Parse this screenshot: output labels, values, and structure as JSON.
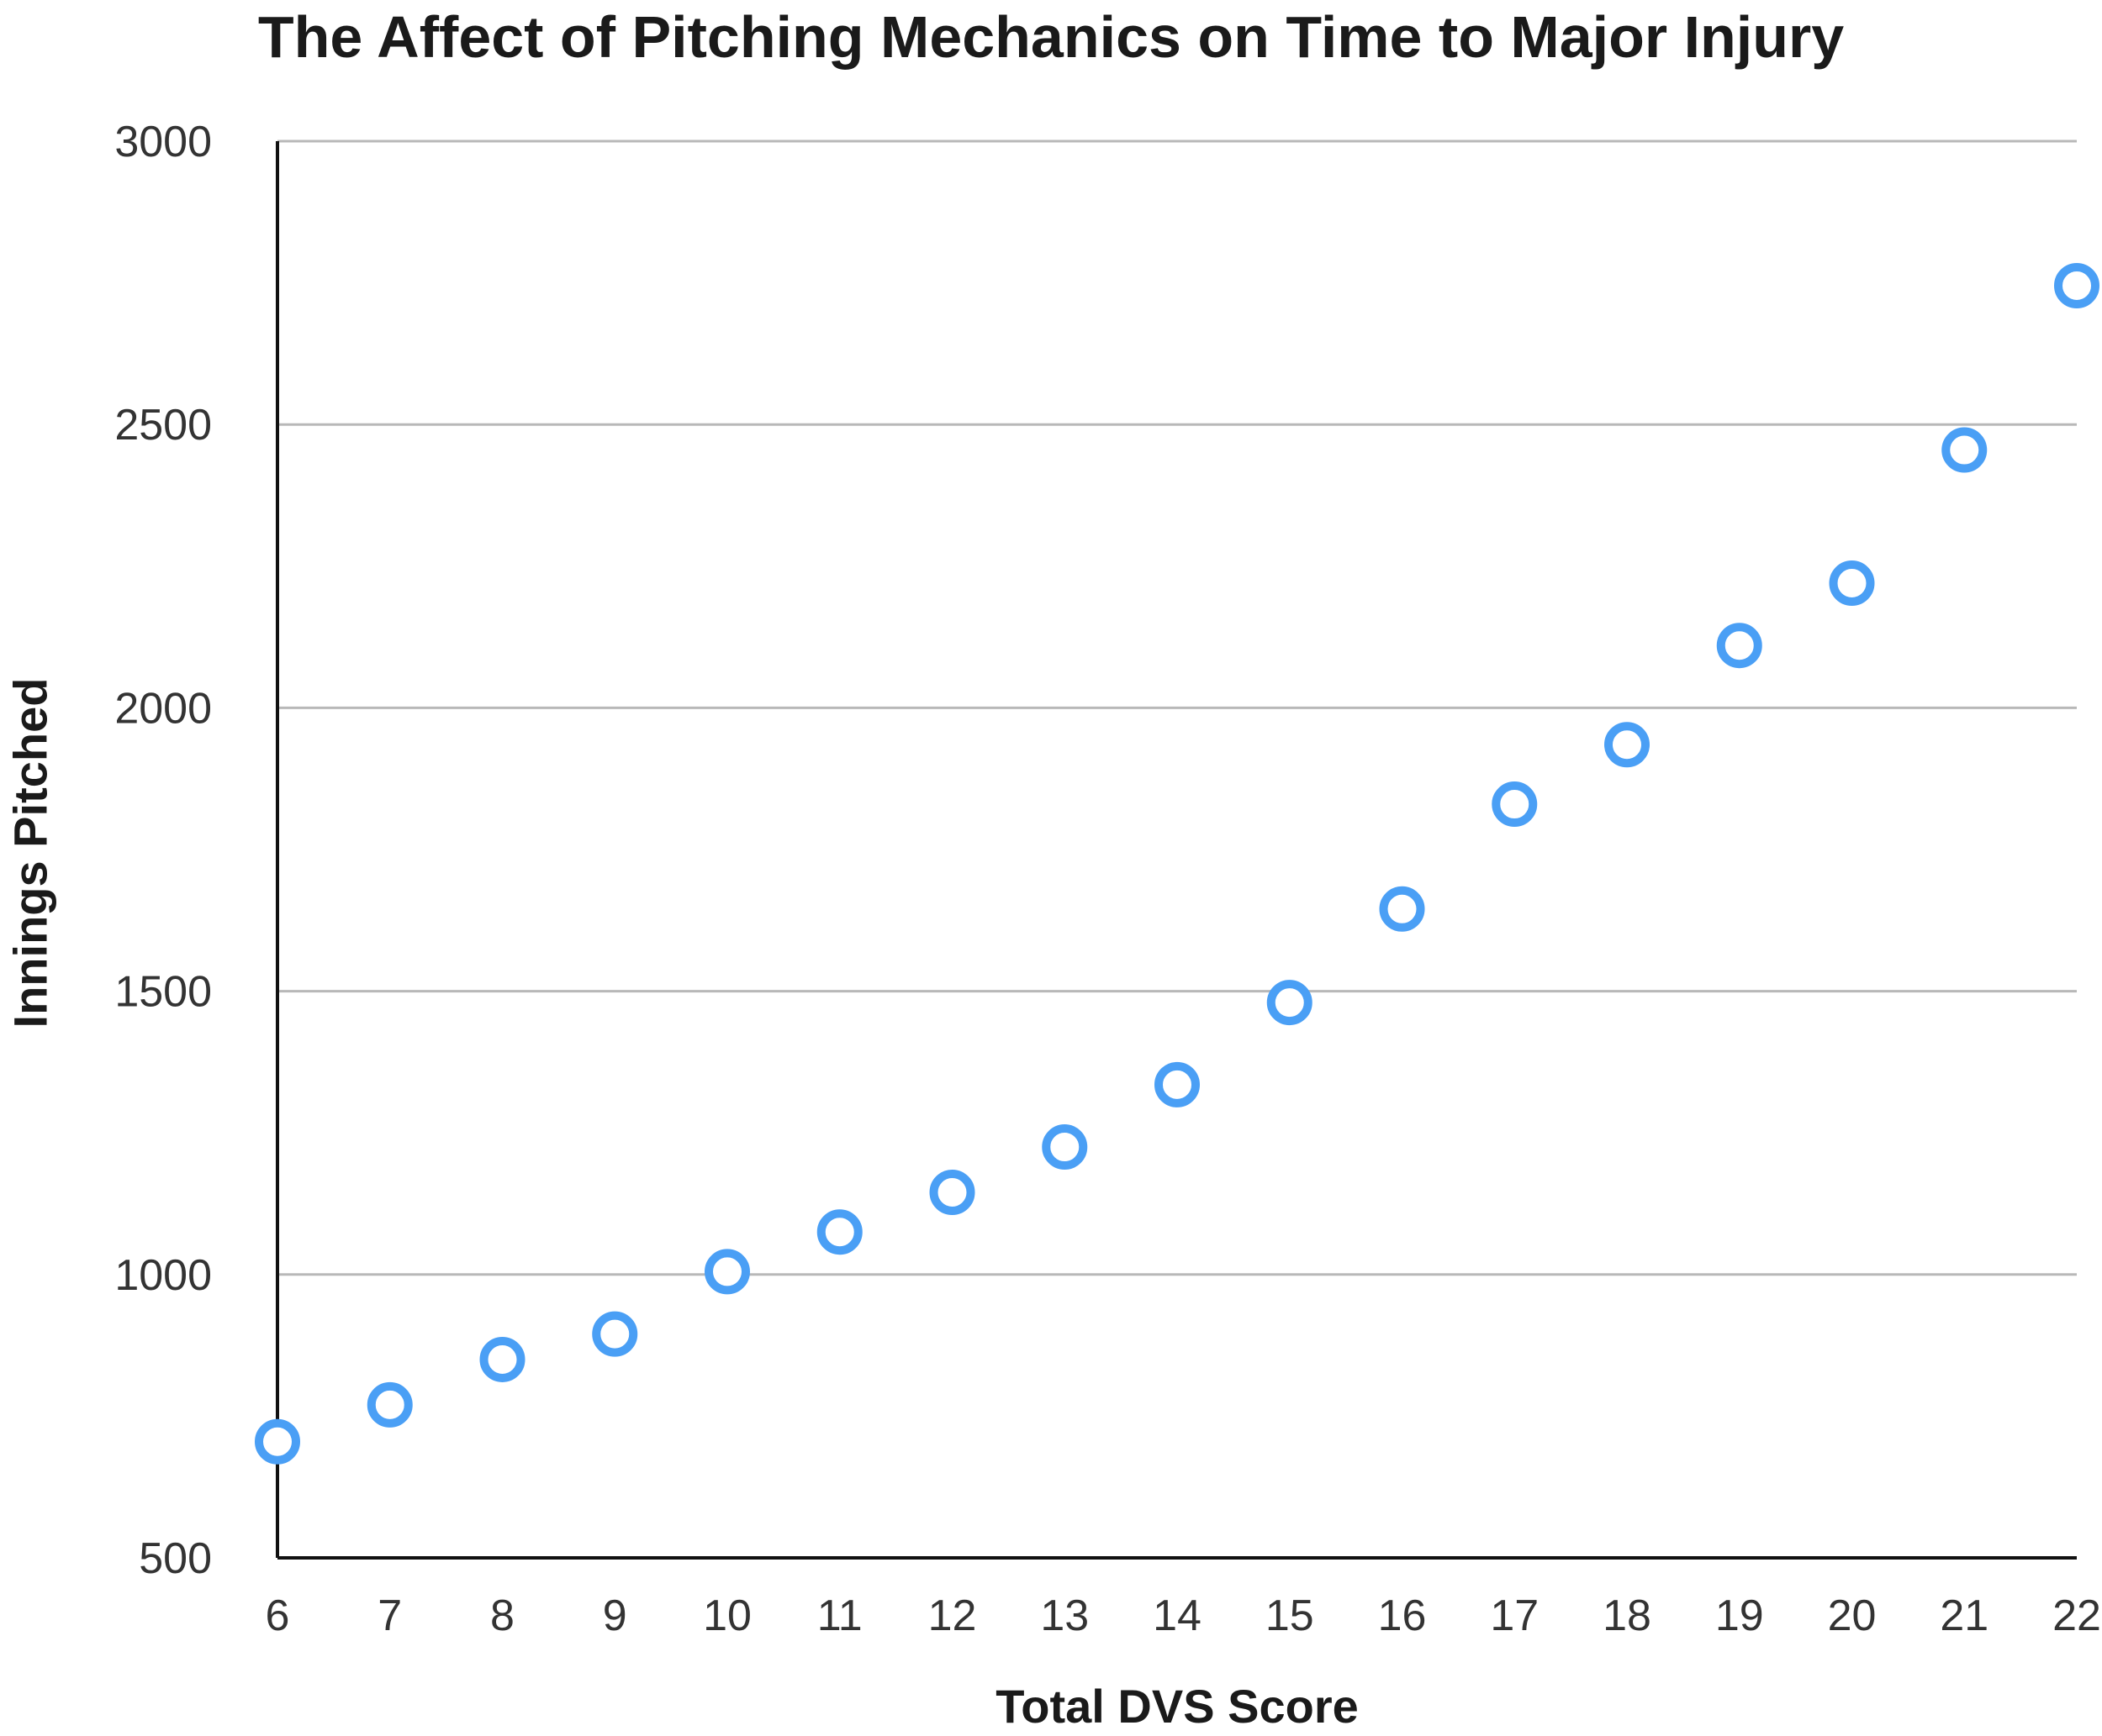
{
  "chart_data": {
    "type": "scatter",
    "title": "The Affect of Pitching Mechanics on Time to Major Injury",
    "xlabel": "Total DVS Score",
    "ylabel": "Innings Pitched",
    "xlim": [
      6,
      22
    ],
    "ylim": [
      500,
      3000
    ],
    "x_ticks": [
      "6",
      "7",
      "8",
      "9",
      "10",
      "11",
      "12",
      "13",
      "14",
      "15",
      "16",
      "17",
      "18",
      "19",
      "20",
      "21",
      "22"
    ],
    "y_ticks": [
      "500",
      "1000",
      "1500",
      "2000",
      "2500",
      "3000"
    ],
    "grid": "horizontal",
    "marker_color": "#4a9ff5",
    "series": [
      {
        "x": [
          6,
          7,
          8,
          9,
          10,
          11,
          12,
          13,
          14,
          15,
          16,
          17,
          18,
          19,
          20,
          21,
          22
        ],
        "y": [
          705,
          770,
          850,
          895,
          1005,
          1075,
          1145,
          1225,
          1335,
          1480,
          1645,
          1830,
          1935,
          2110,
          2220,
          2455,
          2745
        ]
      }
    ]
  }
}
